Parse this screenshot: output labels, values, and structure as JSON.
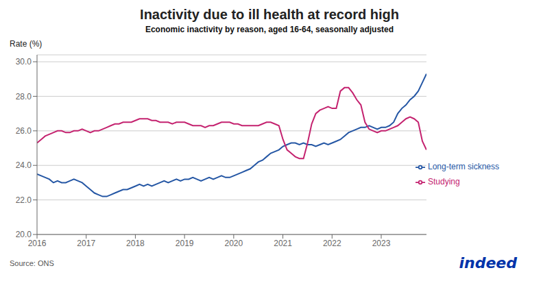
{
  "chart_data": {
    "type": "line",
    "title": "Inactivity due to ill health at record high",
    "subtitle": "Economic inactivity by reason, aged 16-64, seasonally adjusted",
    "y_label": "Rate (%)",
    "annotations": [
      {
        "text": "Source: ONS"
      },
      {
        "text": "indeed",
        "color": "#0033aa"
      }
    ],
    "x": [
      2016.0,
      2016.0834,
      2016.1667,
      2016.2501,
      2016.3335,
      2016.4168,
      2016.5002,
      2016.5836,
      2016.6669,
      2016.7503,
      2016.8337,
      2016.9171,
      2017.0004,
      2017.0838,
      2017.1672,
      2017.2505,
      2017.3339,
      2017.4173,
      2017.5006,
      2017.584,
      2017.6674,
      2017.7507,
      2017.8341,
      2017.9175,
      2018.0008,
      2018.0842,
      2018.1676,
      2018.2509,
      2018.3343,
      2018.4177,
      2018.5011,
      2018.5844,
      2018.6678,
      2018.7512,
      2018.8345,
      2018.9179,
      2019.0013,
      2019.0846,
      2019.168,
      2019.2514,
      2019.3347,
      2019.4181,
      2019.5015,
      2019.5848,
      2019.6682,
      2019.7516,
      2019.8349,
      2019.9183,
      2020.0017,
      2020.0851,
      2020.1684,
      2020.2518,
      2020.3352,
      2020.4185,
      2020.5019,
      2020.5853,
      2020.6686,
      2020.752,
      2020.8354,
      2020.9187,
      2021.0021,
      2021.0855,
      2021.1688,
      2021.2522,
      2021.3356,
      2021.4189,
      2021.5023,
      2021.5857,
      2021.6691,
      2021.7524,
      2021.8358,
      2021.9192,
      2022.0025,
      2022.0859,
      2022.1693,
      2022.2526,
      2022.336,
      2022.4194,
      2022.5027,
      2022.5861,
      2022.6695,
      2022.7528,
      2022.8362,
      2022.9196,
      2023.0029,
      2023.0863,
      2023.1697,
      2023.2531,
      2023.3364,
      2023.4198,
      2023.5032,
      2023.5865,
      2023.6699,
      2023.7533,
      2023.8366,
      2023.92
    ],
    "xlim": [
      2016.0,
      2023.92
    ],
    "xticks": [
      2016,
      2017,
      2018,
      2019,
      2020,
      2021,
      2022,
      2023
    ],
    "ylim": [
      20.0,
      30.4
    ],
    "yticks": [
      {
        "value": 20.0,
        "label": "20.0"
      },
      {
        "value": 22.0,
        "label": "22.0"
      },
      {
        "value": 24.0,
        "label": "24.0"
      },
      {
        "value": 26.0,
        "label": "26.0"
      },
      {
        "value": 28.0,
        "label": "28.0"
      },
      {
        "value": 30.0,
        "label": "30.0"
      }
    ],
    "grid": true,
    "legend": "lower right",
    "series": [
      {
        "name": "Long-term sickness",
        "color": "#2456a4",
        "values": [
          23.5,
          23.4,
          23.3,
          23.2,
          23.0,
          23.1,
          23.0,
          23.0,
          23.1,
          23.2,
          23.1,
          23.0,
          22.8,
          22.6,
          22.4,
          22.3,
          22.2,
          22.2,
          22.3,
          22.4,
          22.5,
          22.6,
          22.6,
          22.7,
          22.8,
          22.9,
          22.8,
          22.9,
          22.8,
          22.9,
          23.0,
          23.1,
          23.0,
          23.1,
          23.2,
          23.1,
          23.2,
          23.2,
          23.3,
          23.2,
          23.1,
          23.2,
          23.3,
          23.2,
          23.3,
          23.4,
          23.3,
          23.3,
          23.4,
          23.5,
          23.6,
          23.7,
          23.8,
          24.0,
          24.2,
          24.3,
          24.5,
          24.7,
          24.8,
          24.9,
          25.1,
          25.2,
          25.3,
          25.3,
          25.2,
          25.3,
          25.2,
          25.2,
          25.1,
          25.2,
          25.3,
          25.2,
          25.3,
          25.4,
          25.5,
          25.7,
          25.9,
          26.0,
          26.1,
          26.2,
          26.2,
          26.3,
          26.2,
          26.1,
          26.2,
          26.2,
          26.3,
          26.5,
          27.0,
          27.3,
          27.5,
          27.8,
          28.0,
          28.3,
          28.8,
          29.3
        ]
      },
      {
        "name": "Studying",
        "color": "#c4226f",
        "values": [
          25.3,
          25.5,
          25.7,
          25.8,
          25.9,
          26.0,
          26.0,
          25.9,
          25.9,
          26.0,
          26.0,
          26.1,
          26.0,
          25.9,
          26.0,
          26.0,
          26.1,
          26.2,
          26.3,
          26.4,
          26.4,
          26.5,
          26.5,
          26.5,
          26.6,
          26.7,
          26.7,
          26.7,
          26.6,
          26.6,
          26.5,
          26.5,
          26.5,
          26.4,
          26.5,
          26.5,
          26.5,
          26.4,
          26.3,
          26.3,
          26.3,
          26.2,
          26.3,
          26.3,
          26.4,
          26.5,
          26.5,
          26.5,
          26.4,
          26.4,
          26.3,
          26.3,
          26.3,
          26.3,
          26.3,
          26.4,
          26.5,
          26.5,
          26.4,
          26.3,
          25.5,
          24.9,
          24.7,
          24.5,
          24.4,
          24.4,
          25.3,
          26.4,
          27.0,
          27.2,
          27.3,
          27.4,
          27.3,
          27.3,
          28.3,
          28.5,
          28.5,
          28.2,
          27.8,
          27.5,
          26.5,
          26.1,
          26.0,
          25.9,
          26.0,
          26.0,
          26.1,
          26.2,
          26.3,
          26.5,
          26.7,
          26.8,
          26.7,
          26.5,
          25.4,
          24.9
        ]
      }
    ]
  }
}
